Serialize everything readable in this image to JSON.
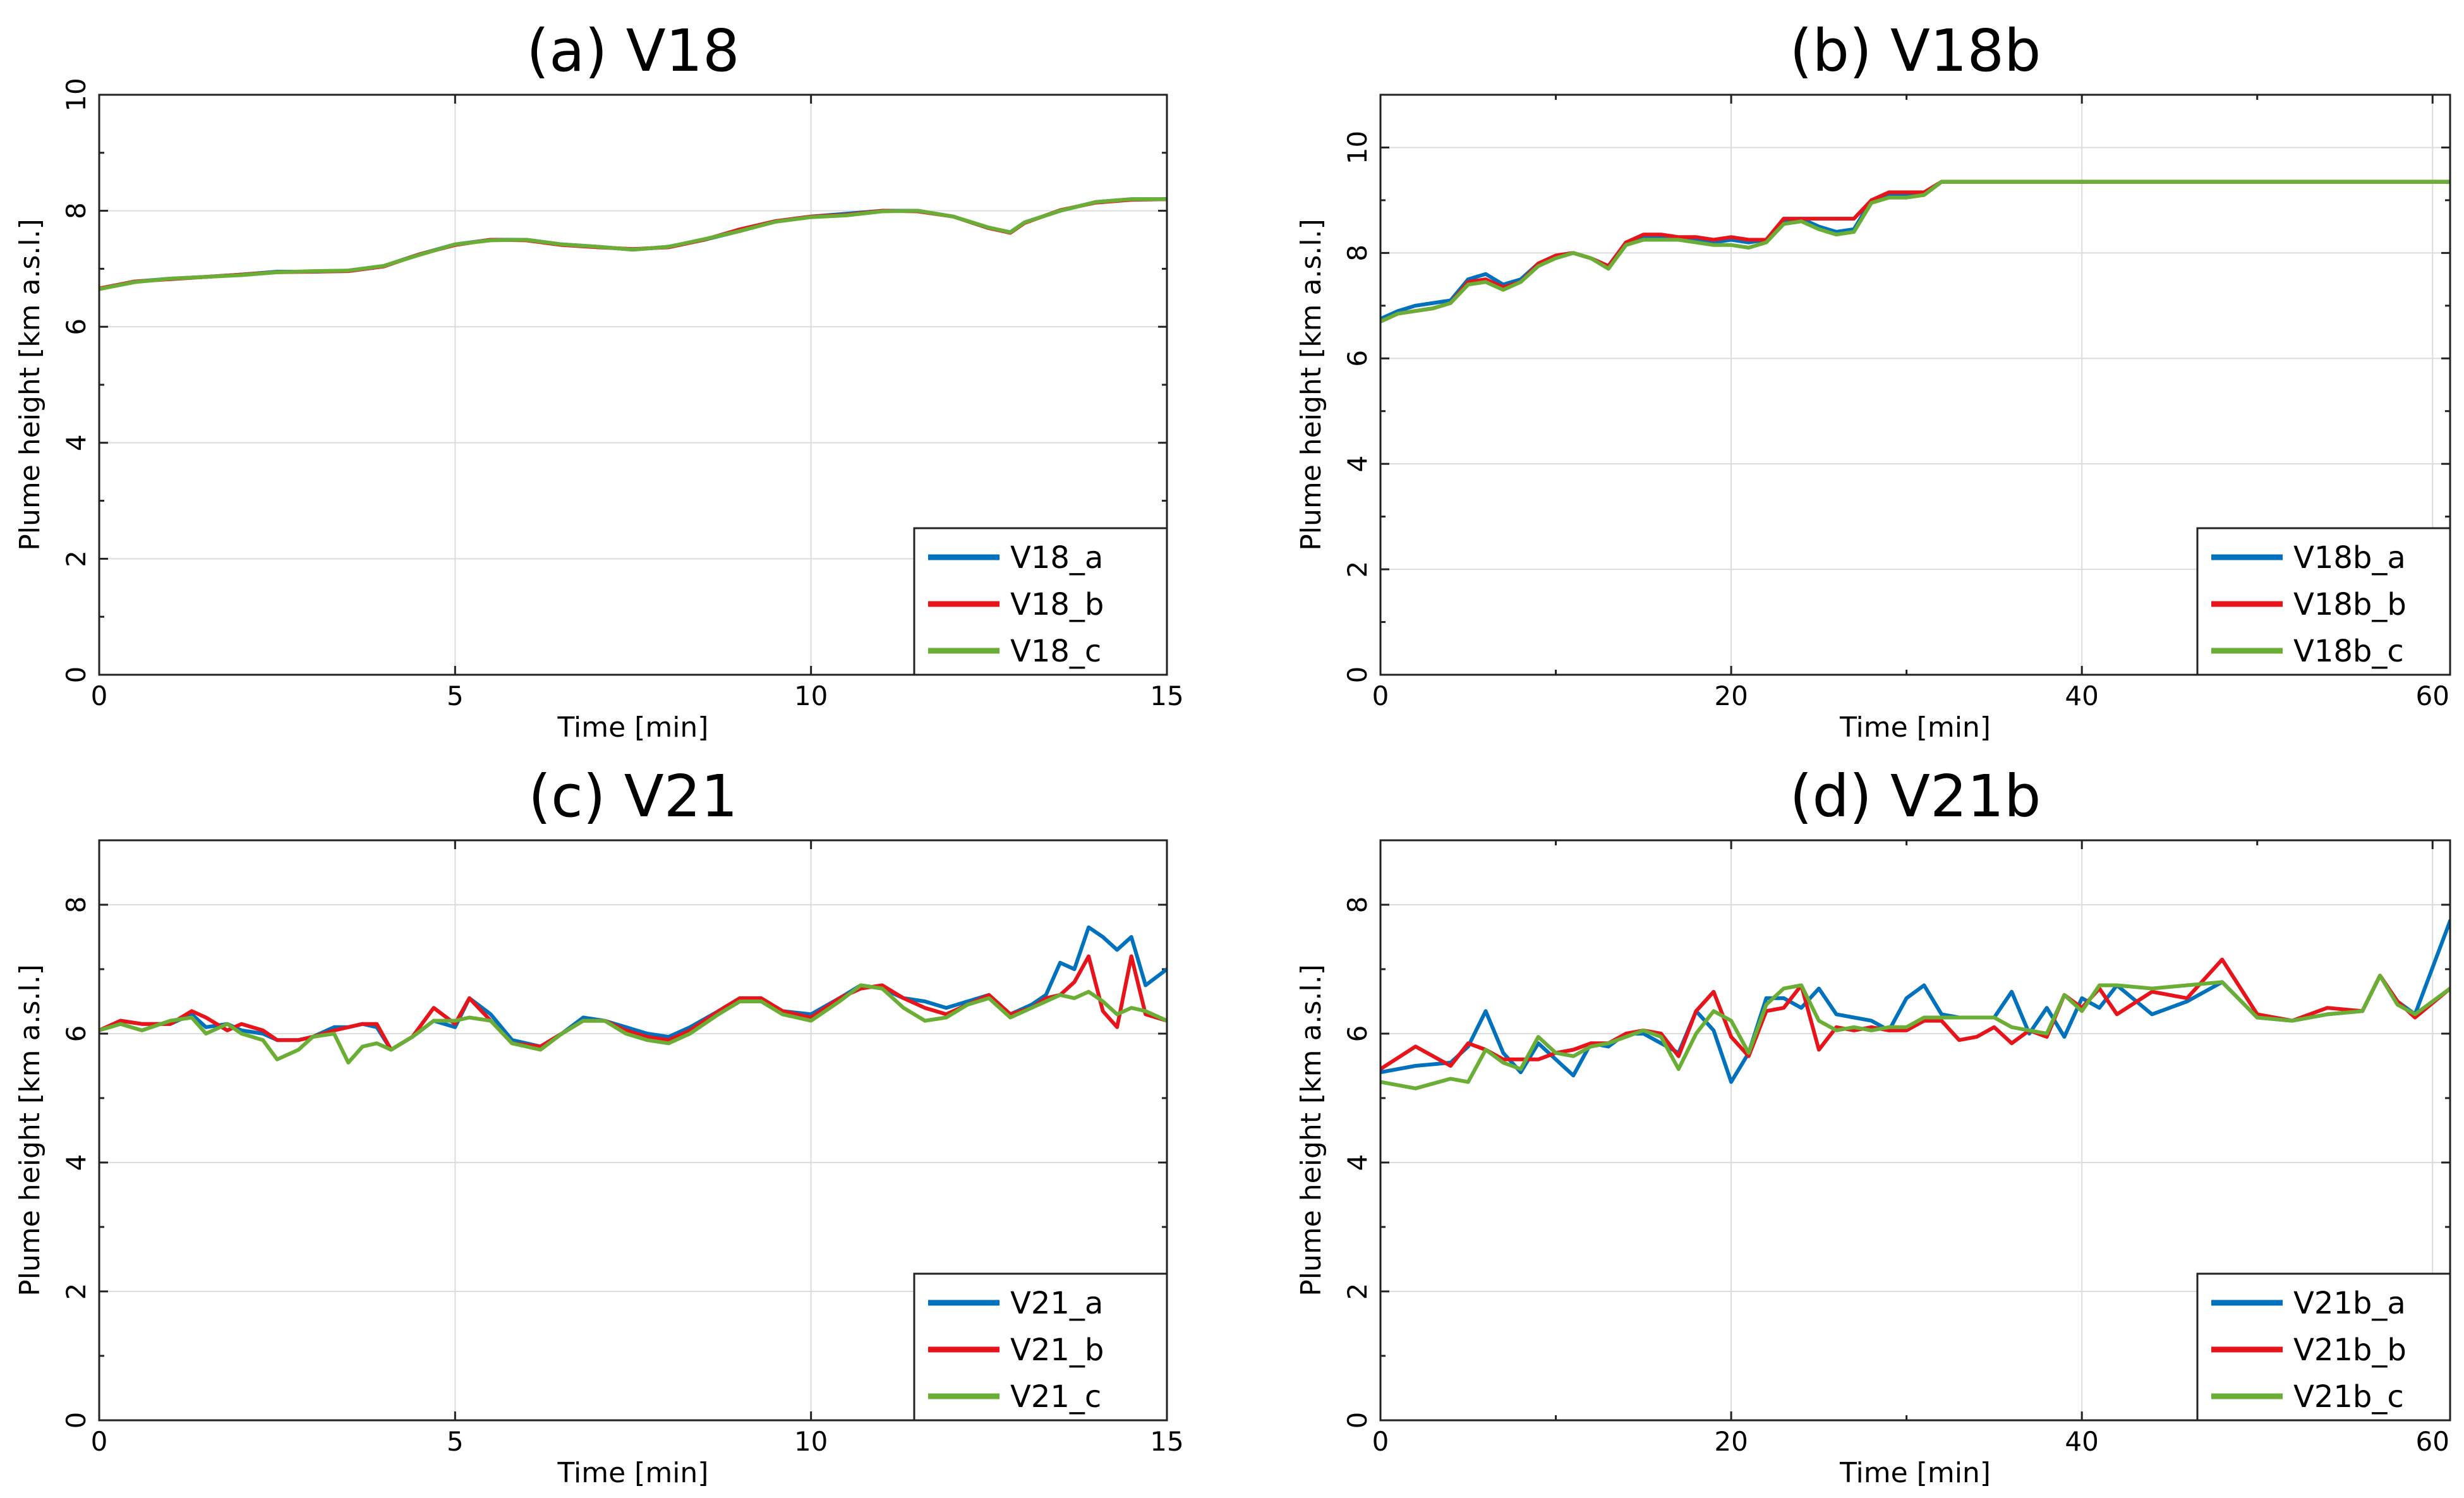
{
  "chart_data": [
    {
      "id": "a",
      "type": "line",
      "title": "(a) V18",
      "xlabel": "Time [min]",
      "ylabel": "Plume height [km a.s.l.]",
      "xlim": [
        0,
        15
      ],
      "ylim": [
        0,
        10
      ],
      "xticks": [
        0,
        5,
        10,
        15
      ],
      "yticks": [
        0,
        2,
        4,
        6,
        8,
        10
      ],
      "xminor": [],
      "yminor": [
        1,
        3,
        5,
        7,
        9
      ],
      "grid": true,
      "legend_position": "bottom-right",
      "x": [
        0,
        0.5,
        1,
        1.5,
        2,
        2.5,
        3,
        3.5,
        4,
        4.5,
        5,
        5.5,
        6,
        6.5,
        7,
        7.5,
        8,
        8.5,
        9,
        9.5,
        10,
        10.5,
        11,
        11.5,
        12,
        12.5,
        12.8,
        13,
        13.5,
        14,
        14.5,
        15
      ],
      "series": [
        {
          "name": "V18_a",
          "color": "#0072BD",
          "values": [
            6.65,
            6.78,
            6.83,
            6.86,
            6.9,
            6.95,
            6.95,
            6.97,
            7.05,
            7.25,
            7.42,
            7.5,
            7.5,
            7.42,
            7.38,
            7.33,
            7.38,
            7.5,
            7.65,
            7.82,
            7.9,
            7.95,
            8.0,
            8.0,
            7.9,
            7.7,
            7.63,
            7.8,
            8.0,
            8.15,
            8.2,
            8.2
          ]
        },
        {
          "name": "V18_b",
          "color": "#E8141B",
          "values": [
            6.66,
            6.78,
            6.82,
            6.86,
            6.9,
            6.94,
            6.95,
            6.96,
            7.04,
            7.25,
            7.41,
            7.5,
            7.49,
            7.41,
            7.37,
            7.34,
            7.37,
            7.5,
            7.68,
            7.82,
            7.9,
            7.93,
            8.0,
            7.99,
            7.9,
            7.7,
            7.62,
            7.79,
            8.01,
            8.14,
            8.19,
            8.2
          ]
        },
        {
          "name": "V18_c",
          "color": "#6AAE35",
          "values": [
            6.65,
            6.77,
            6.83,
            6.86,
            6.89,
            6.94,
            6.96,
            6.97,
            7.05,
            7.24,
            7.42,
            7.49,
            7.5,
            7.42,
            7.38,
            7.33,
            7.38,
            7.51,
            7.65,
            7.81,
            7.89,
            7.92,
            7.99,
            8.0,
            7.9,
            7.71,
            7.63,
            7.8,
            8.0,
            8.15,
            8.2,
            8.2
          ]
        }
      ]
    },
    {
      "id": "b",
      "type": "line",
      "title": "(b) V18b",
      "xlabel": "Time [min]",
      "ylabel": "Plume height [km a.s.l.]",
      "xlim": [
        0,
        61
      ],
      "ylim": [
        0,
        11
      ],
      "xticks": [
        0,
        20,
        40,
        60
      ],
      "yticks": [
        0,
        2,
        4,
        6,
        8,
        10
      ],
      "xminor": [
        10,
        30,
        50
      ],
      "yminor": [
        1,
        3,
        5,
        7,
        9
      ],
      "grid": true,
      "legend_position": "bottom-right",
      "x": [
        0,
        1,
        2,
        3,
        4,
        5,
        6,
        7,
        8,
        9,
        10,
        11,
        12,
        13,
        14,
        15,
        16,
        17,
        18,
        19,
        20,
        21,
        22,
        23,
        24,
        25,
        26,
        27,
        28,
        29,
        30,
        31,
        32,
        61
      ],
      "series": [
        {
          "name": "V18b_a",
          "color": "#0072BD",
          "values": [
            6.75,
            6.9,
            7.0,
            7.05,
            7.1,
            7.5,
            7.6,
            7.4,
            7.5,
            7.8,
            7.95,
            8.0,
            7.9,
            7.75,
            8.2,
            8.3,
            8.3,
            8.25,
            8.25,
            8.2,
            8.25,
            8.2,
            8.25,
            8.6,
            8.65,
            8.5,
            8.4,
            8.45,
            9.0,
            9.1,
            9.1,
            9.1,
            9.35,
            9.35
          ]
        },
        {
          "name": "V18b_b",
          "color": "#E8141B",
          "values": [
            6.7,
            6.85,
            6.9,
            6.95,
            7.05,
            7.45,
            7.5,
            7.35,
            7.45,
            7.8,
            7.95,
            8.0,
            7.9,
            7.75,
            8.2,
            8.35,
            8.35,
            8.3,
            8.3,
            8.25,
            8.3,
            8.25,
            8.25,
            8.65,
            8.65,
            8.65,
            8.65,
            8.65,
            9.0,
            9.15,
            9.15,
            9.15,
            9.35,
            9.35
          ]
        },
        {
          "name": "V18b_c",
          "color": "#6AAE35",
          "values": [
            6.7,
            6.85,
            6.9,
            6.95,
            7.05,
            7.4,
            7.45,
            7.3,
            7.45,
            7.75,
            7.9,
            8.0,
            7.9,
            7.7,
            8.15,
            8.25,
            8.25,
            8.25,
            8.2,
            8.15,
            8.15,
            8.1,
            8.2,
            8.55,
            8.6,
            8.45,
            8.35,
            8.4,
            8.95,
            9.05,
            9.05,
            9.1,
            9.35,
            9.35
          ]
        }
      ]
    },
    {
      "id": "c",
      "type": "line",
      "title": "(c) V21",
      "xlabel": "Time [min]",
      "ylabel": "Plume height [km a.s.l.]",
      "xlim": [
        0,
        15
      ],
      "ylim": [
        0,
        9
      ],
      "xticks": [
        0,
        5,
        10,
        15
      ],
      "yticks": [
        0,
        2,
        4,
        6,
        8
      ],
      "xminor": [],
      "yminor": [
        1,
        3,
        5,
        7
      ],
      "grid": true,
      "legend_position": "bottom-right",
      "x": [
        0,
        0.3,
        0.6,
        1,
        1.3,
        1.5,
        1.8,
        2,
        2.3,
        2.5,
        2.8,
        3,
        3.3,
        3.5,
        3.7,
        3.9,
        4.1,
        4.4,
        4.7,
        5,
        5.2,
        5.5,
        5.8,
        6.2,
        6.5,
        6.8,
        7.1,
        7.4,
        7.7,
        8,
        8.3,
        8.7,
        9,
        9.3,
        9.6,
        10,
        10.4,
        10.7,
        11,
        11.3,
        11.6,
        11.9,
        12.2,
        12.5,
        12.8,
        13.1,
        13.3,
        13.5,
        13.7,
        13.9,
        14.1,
        14.3,
        14.5,
        14.7,
        15
      ],
      "series": [
        {
          "name": "V21_a",
          "color": "#0072BD",
          "values": [
            6.05,
            6.2,
            6.15,
            6.15,
            6.3,
            6.1,
            6.15,
            6.05,
            6.0,
            5.9,
            5.9,
            5.95,
            6.1,
            6.1,
            6.15,
            6.1,
            5.75,
            5.95,
            6.2,
            6.1,
            6.55,
            6.3,
            5.9,
            5.8,
            6.0,
            6.25,
            6.2,
            6.1,
            6.0,
            5.95,
            6.1,
            6.35,
            6.55,
            6.5,
            6.35,
            6.3,
            6.55,
            6.75,
            6.7,
            6.55,
            6.5,
            6.4,
            6.5,
            6.6,
            6.3,
            6.45,
            6.6,
            7.1,
            7.0,
            7.65,
            7.5,
            7.3,
            7.5,
            6.75,
            7.0
          ]
        },
        {
          "name": "V21_b",
          "color": "#E8141B",
          "values": [
            6.05,
            6.2,
            6.15,
            6.15,
            6.35,
            6.25,
            6.05,
            6.15,
            6.05,
            5.9,
            5.9,
            5.95,
            6.05,
            6.1,
            6.15,
            6.15,
            5.75,
            5.95,
            6.4,
            6.15,
            6.55,
            6.2,
            5.85,
            5.8,
            6.0,
            6.2,
            6.2,
            6.05,
            5.95,
            5.9,
            6.05,
            6.35,
            6.55,
            6.55,
            6.35,
            6.25,
            6.55,
            6.7,
            6.75,
            6.55,
            6.4,
            6.3,
            6.45,
            6.6,
            6.3,
            6.4,
            6.55,
            6.6,
            6.8,
            7.2,
            6.35,
            6.1,
            7.2,
            6.3,
            6.2
          ]
        },
        {
          "name": "V21_c",
          "color": "#6AAE35",
          "values": [
            6.05,
            6.15,
            6.05,
            6.2,
            6.25,
            6.0,
            6.15,
            6.0,
            5.9,
            5.6,
            5.75,
            5.95,
            6.0,
            5.55,
            5.8,
            5.85,
            5.75,
            5.95,
            6.2,
            6.2,
            6.25,
            6.2,
            5.85,
            5.75,
            6.0,
            6.2,
            6.2,
            6.0,
            5.9,
            5.85,
            6.0,
            6.3,
            6.5,
            6.5,
            6.3,
            6.2,
            6.5,
            6.75,
            6.7,
            6.4,
            6.2,
            6.25,
            6.45,
            6.55,
            6.25,
            6.4,
            6.5,
            6.6,
            6.55,
            6.65,
            6.5,
            6.3,
            6.4,
            6.35,
            6.2
          ]
        }
      ]
    },
    {
      "id": "d",
      "type": "line",
      "title": "(d) V21b",
      "xlabel": "Time [min]",
      "ylabel": "Plume height [km a.s.l.]",
      "xlim": [
        0,
        61
      ],
      "ylim": [
        0,
        9
      ],
      "xticks": [
        0,
        20,
        40,
        60
      ],
      "yticks": [
        0,
        2,
        4,
        6,
        8
      ],
      "xminor": [
        10,
        30,
        50
      ],
      "yminor": [
        1,
        3,
        5,
        7
      ],
      "grid": true,
      "legend_position": "bottom-right",
      "x": [
        0,
        2,
        4,
        5,
        6,
        7,
        8,
        9,
        10,
        11,
        12,
        13,
        14,
        15,
        16,
        17,
        18,
        19,
        20,
        21,
        22,
        23,
        24,
        25,
        26,
        27,
        28,
        29,
        30,
        31,
        32,
        33,
        34,
        35,
        36,
        37,
        38,
        39,
        40,
        41,
        42,
        44,
        46,
        48,
        50,
        52,
        54,
        56,
        57,
        58,
        59,
        61
      ],
      "series": [
        {
          "name": "V21b_a",
          "color": "#0072BD",
          "values": [
            5.4,
            5.5,
            5.55,
            5.8,
            6.35,
            5.7,
            5.4,
            5.85,
            5.6,
            5.35,
            5.85,
            5.8,
            6.0,
            6.0,
            5.85,
            5.7,
            6.35,
            6.05,
            5.25,
            5.7,
            6.55,
            6.55,
            6.4,
            6.7,
            6.3,
            6.25,
            6.2,
            6.05,
            6.55,
            6.75,
            6.3,
            6.25,
            6.25,
            6.25,
            6.65,
            6.0,
            6.4,
            5.95,
            6.55,
            6.4,
            6.75,
            6.3,
            6.5,
            6.8,
            6.25,
            6.2,
            6.3,
            6.35,
            6.9,
            6.5,
            6.3,
            7.75
          ]
        },
        {
          "name": "V21b_b",
          "color": "#E8141B",
          "values": [
            5.45,
            5.8,
            5.5,
            5.85,
            5.75,
            5.6,
            5.6,
            5.6,
            5.7,
            5.75,
            5.85,
            5.85,
            6.0,
            6.05,
            6.0,
            5.65,
            6.35,
            6.65,
            5.95,
            5.65,
            6.35,
            6.4,
            6.75,
            5.75,
            6.1,
            6.05,
            6.1,
            6.05,
            6.05,
            6.2,
            6.2,
            5.9,
            5.95,
            6.1,
            5.85,
            6.05,
            5.95,
            6.6,
            6.4,
            6.7,
            6.3,
            6.65,
            6.55,
            7.15,
            6.3,
            6.2,
            6.4,
            6.35,
            6.9,
            6.5,
            6.25,
            6.7
          ]
        },
        {
          "name": "V21b_c",
          "color": "#6AAE35",
          "values": [
            5.25,
            5.15,
            5.3,
            5.25,
            5.75,
            5.55,
            5.45,
            5.95,
            5.7,
            5.65,
            5.8,
            5.85,
            5.95,
            6.05,
            5.95,
            5.45,
            6.0,
            6.35,
            6.2,
            5.7,
            6.45,
            6.7,
            6.75,
            6.2,
            6.05,
            6.1,
            6.05,
            6.1,
            6.1,
            6.25,
            6.25,
            6.25,
            6.25,
            6.25,
            6.1,
            6.05,
            6.0,
            6.6,
            6.35,
            6.75,
            6.75,
            6.7,
            6.75,
            6.8,
            6.25,
            6.2,
            6.3,
            6.35,
            6.9,
            6.45,
            6.3,
            6.7
          ]
        }
      ]
    }
  ]
}
